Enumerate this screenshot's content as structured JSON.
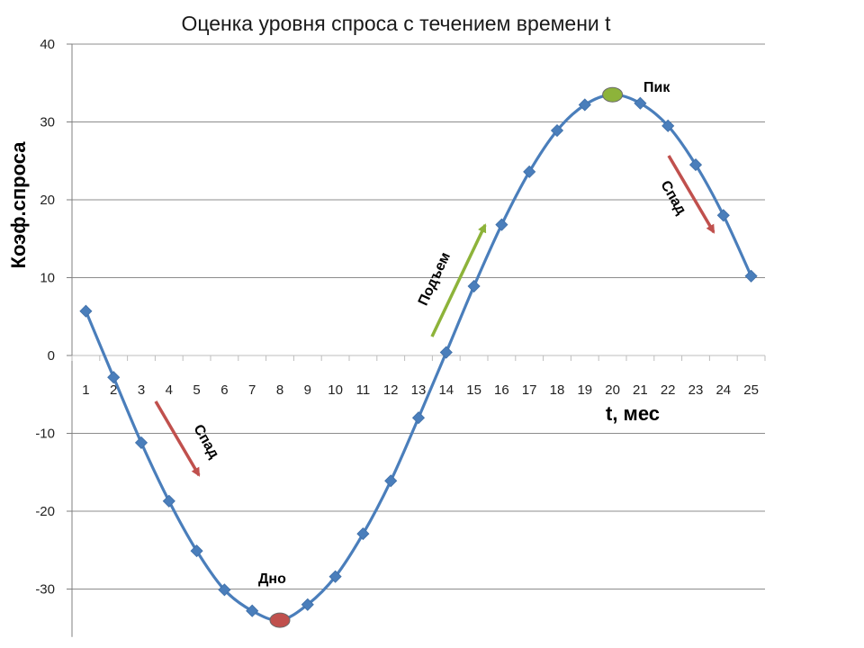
{
  "chart_data": {
    "type": "line",
    "title": "Оценка уровня спроса с течением времени t",
    "xlabel": "t, мес",
    "ylabel": "Коэф.спроса",
    "x": [
      1,
      2,
      3,
      4,
      5,
      6,
      7,
      8,
      9,
      10,
      11,
      12,
      13,
      14,
      15,
      16,
      17,
      18,
      19,
      20,
      21,
      22,
      23,
      24,
      25
    ],
    "xlim": [
      0.5,
      25.5
    ],
    "ylim": [
      -35,
      40
    ],
    "yticks": [
      40,
      30,
      20,
      10,
      0,
      -10,
      -20,
      -30
    ],
    "grid": "horizontal",
    "series": [
      {
        "values": [
          5.7,
          -2.8,
          -11.2,
          -18.7,
          -25.1,
          -30.1,
          -32.8,
          -34.0,
          -32.0,
          -28.4,
          -22.9,
          -16.1,
          -8.0,
          0.4,
          8.9,
          16.8,
          23.6,
          28.9,
          32.2,
          33.5,
          32.4,
          29.5,
          24.5,
          18.0,
          10.2
        ],
        "color": "#4a7ebb",
        "marker": "diamond"
      }
    ],
    "highlights": [
      {
        "label": "Пик",
        "x": 20,
        "y": 33.5,
        "color": "#8db33a"
      },
      {
        "label": "Дно",
        "x": 8,
        "y": -34.0,
        "color": "#c0504d"
      }
    ],
    "annotations": [
      {
        "label": "Спад",
        "color": "#c0504d"
      },
      {
        "label": "Подъем",
        "color": "#8db33a"
      },
      {
        "label": "Спад",
        "color": "#c0504d"
      }
    ]
  }
}
